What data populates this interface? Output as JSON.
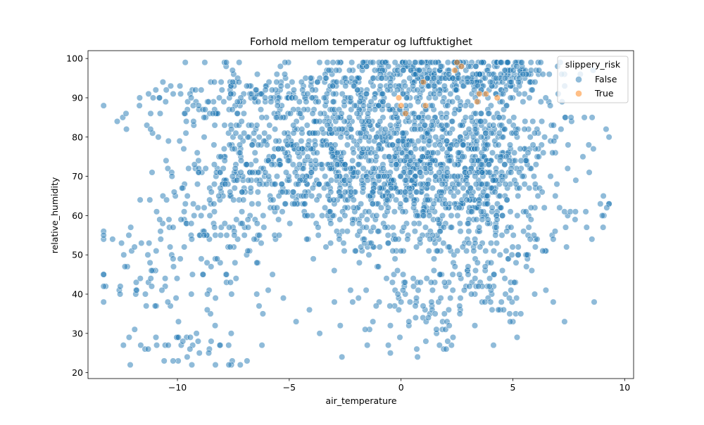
{
  "chart_data": {
    "type": "scatter",
    "title": "Forhold mellom temperatur og luftfuktighet",
    "xlabel": "air_temperature",
    "ylabel": "relative_humidity",
    "xlim": [
      -14.0,
      10.4
    ],
    "ylim": [
      18.5,
      102.0
    ],
    "xticks": [
      -10,
      -5,
      0,
      5,
      10
    ],
    "xtick_labels": [
      "−10",
      "−5",
      "0",
      "5",
      "10"
    ],
    "yticks": [
      20,
      30,
      40,
      50,
      60,
      70,
      80,
      90,
      100
    ],
    "ytick_labels": [
      "20",
      "30",
      "40",
      "50",
      "60",
      "70",
      "80",
      "90",
      "100"
    ],
    "grid": false,
    "legend": {
      "title": "slippery_risk",
      "placement": "top-right",
      "entries": [
        {
          "label": "False",
          "color": "#1f77b4"
        },
        {
          "label": "True",
          "color": "#ff7f0e"
        }
      ]
    },
    "series": [
      {
        "name": "False",
        "color": "#1f77b4",
        "clusters": [
          {
            "center": [
              0.5,
              72
            ],
            "spread": [
              3.0,
              10
            ],
            "count": 700
          },
          {
            "center": [
              1.5,
              96
            ],
            "spread": [
              2.5,
              2.5
            ],
            "count": 260
          },
          {
            "center": [
              -3.5,
              73
            ],
            "spread": [
              2.5,
              8
            ],
            "count": 280
          },
          {
            "center": [
              -6.5,
              70
            ],
            "spread": [
              2.2,
              10
            ],
            "count": 170
          },
          {
            "center": [
              3.5,
              75
            ],
            "spread": [
              1.6,
              7
            ],
            "count": 220
          },
          {
            "center": [
              -1.5,
              88
            ],
            "spread": [
              3.0,
              7
            ],
            "count": 200
          },
          {
            "center": [
              2.0,
              50
            ],
            "spread": [
              2.5,
              10
            ],
            "count": 180
          },
          {
            "center": [
              -9.0,
              55
            ],
            "spread": [
              2.0,
              10
            ],
            "count": 120
          },
          {
            "center": [
              4.5,
              95
            ],
            "spread": [
              1.2,
              3
            ],
            "count": 90
          },
          {
            "center": [
              -5.5,
              90
            ],
            "spread": [
              2.5,
              4
            ],
            "count": 110
          },
          {
            "center": [
              1.0,
              35
            ],
            "spread": [
              2.0,
              5
            ],
            "count": 70
          },
          {
            "center": [
              -10.0,
              27
            ],
            "spread": [
              1.6,
              3
            ],
            "count": 40
          },
          {
            "center": [
              -11.5,
              45
            ],
            "spread": [
              1.2,
              6
            ],
            "count": 30
          },
          {
            "center": [
              6.0,
              80
            ],
            "spread": [
              1.0,
              8
            ],
            "count": 50
          },
          {
            "center": [
              8.5,
              62
            ],
            "spread": [
              0.8,
              3
            ],
            "count": 10
          },
          {
            "center": [
              -8.5,
              88
            ],
            "spread": [
              2.0,
              4
            ],
            "count": 40
          },
          {
            "center": [
              4.5,
              45
            ],
            "spread": [
              1.5,
              7
            ],
            "count": 50
          }
        ],
        "extra_points": [
          [
            -13.3,
            55
          ],
          [
            -12.9,
            54
          ],
          [
            -12.5,
            53
          ],
          [
            -12.3,
            86
          ],
          [
            -11.7,
            88
          ],
          [
            -11.2,
            82
          ],
          [
            -10.8,
            90
          ],
          [
            -10.5,
            92
          ],
          [
            -10.3,
            93
          ],
          [
            -8.3,
            22
          ],
          [
            -7.7,
            22
          ],
          [
            -8.6,
            25
          ],
          [
            7.4,
            52
          ],
          [
            7.6,
            85
          ],
          [
            7.2,
            89
          ],
          [
            8.2,
            85
          ],
          [
            8.3,
            57
          ],
          [
            9.2,
            62
          ],
          [
            9.0,
            60
          ],
          [
            7.8,
            61
          ]
        ],
        "approx_total": 2650
      },
      {
        "name": "True",
        "color": "#ff7f0e",
        "points": [
          [
            2.5,
            99
          ],
          [
            2.7,
            98
          ],
          [
            3.5,
            91
          ],
          [
            3.8,
            91
          ],
          [
            4.3,
            90
          ],
          [
            1.0,
            94
          ],
          [
            0.0,
            88
          ],
          [
            0.2,
            86
          ],
          [
            1.1,
            88
          ],
          [
            2.4,
            97
          ],
          [
            3.4,
            89
          ],
          [
            -0.1,
            90
          ]
        ]
      }
    ]
  }
}
